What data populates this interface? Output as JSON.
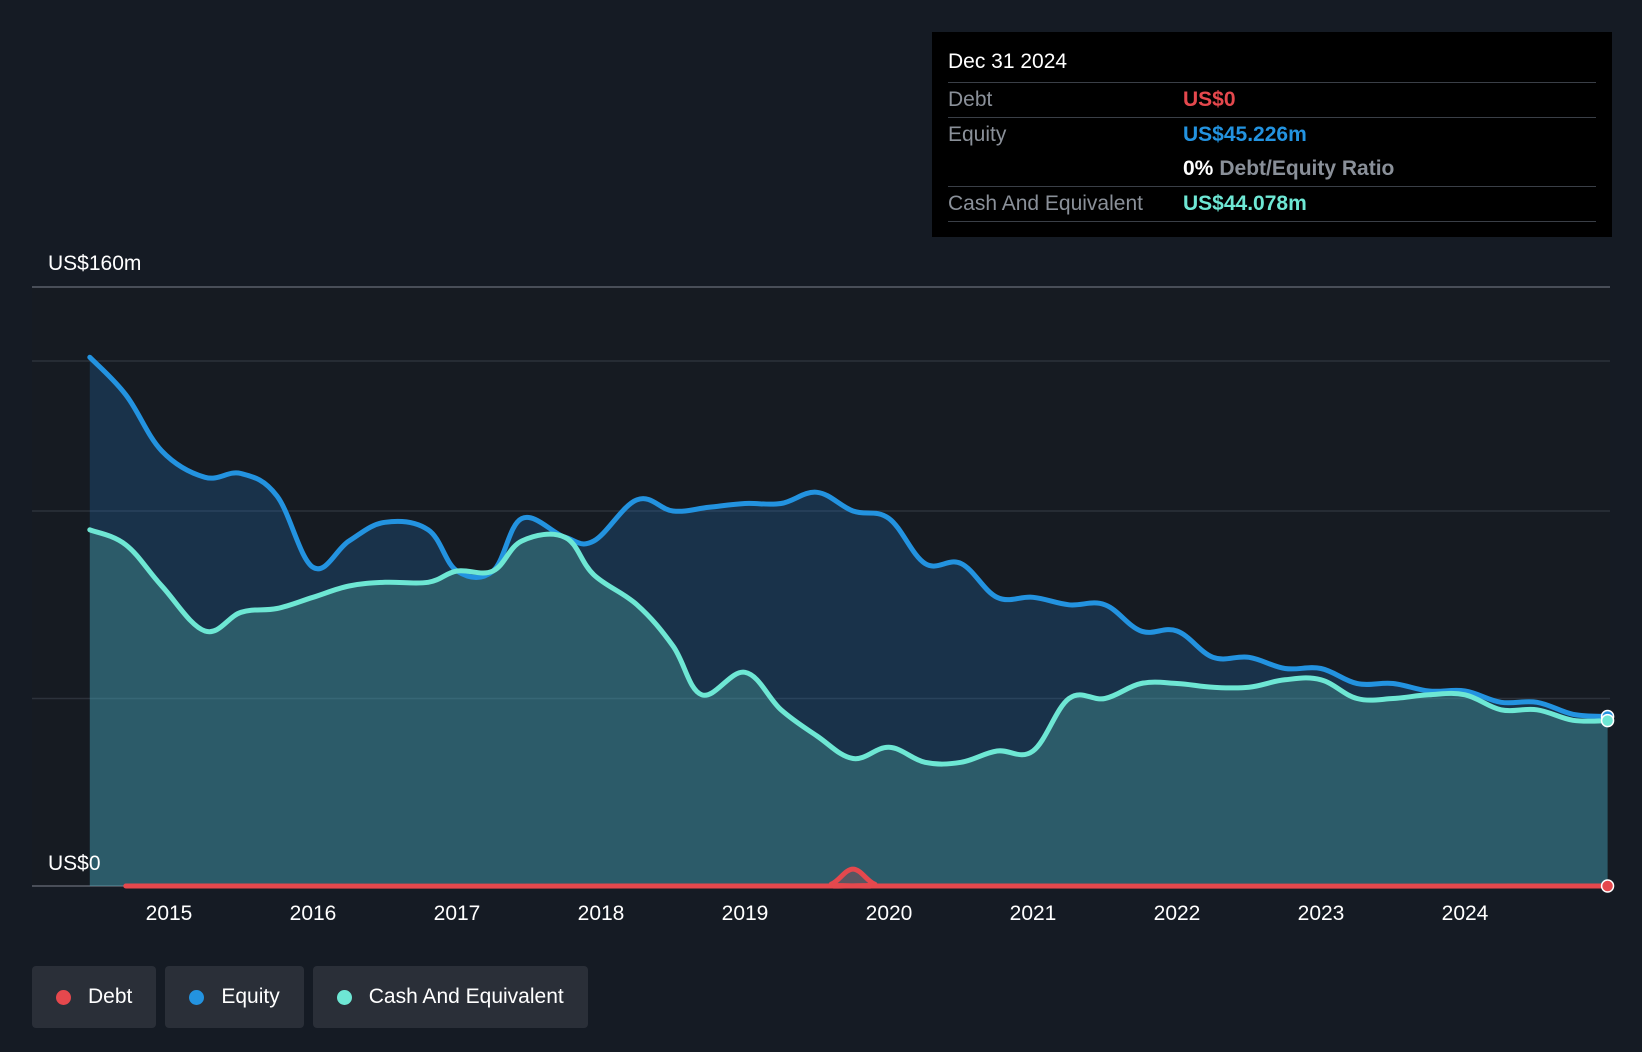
{
  "tooltip": {
    "date": "Dec 31 2024",
    "debt_label": "Debt",
    "debt_value": "US$0",
    "equity_label": "Equity",
    "equity_value": "US$45.226m",
    "ratio_pct": "0%",
    "ratio_label": "Debt/Equity Ratio",
    "cash_label": "Cash And Equivalent",
    "cash_value": "US$44.078m"
  },
  "legend": [
    {
      "label": "Debt",
      "color": "#e5484d"
    },
    {
      "label": "Equity",
      "color": "#2393e0"
    },
    {
      "label": "Cash And Equivalent",
      "color": "#6ee7d4"
    }
  ],
  "colors": {
    "debt": "#e5484d",
    "equity": "#2393e0",
    "cash": "#6ee7d4",
    "background": "#151b24",
    "plot_background": "#161b22"
  },
  "chart_data": {
    "type": "area",
    "ylabel_top": "US$160m",
    "ylabel_bottom": "US$0",
    "ylim": [
      0,
      160
    ],
    "grid": true,
    "xticks": [
      "2015",
      "2016",
      "2017",
      "2018",
      "2019",
      "2020",
      "2021",
      "2022",
      "2023",
      "2024"
    ],
    "series": [
      {
        "name": "Equity",
        "points": [
          [
            2014.45,
            141
          ],
          [
            2014.7,
            131
          ],
          [
            2014.95,
            116
          ],
          [
            2015.25,
            109
          ],
          [
            2015.5,
            110
          ],
          [
            2015.75,
            104
          ],
          [
            2016.0,
            85
          ],
          [
            2016.25,
            92
          ],
          [
            2016.5,
            97
          ],
          [
            2016.8,
            95
          ],
          [
            2017.0,
            84
          ],
          [
            2017.25,
            84
          ],
          [
            2017.45,
            98
          ],
          [
            2017.75,
            93
          ],
          [
            2017.95,
            92
          ],
          [
            2018.25,
            103
          ],
          [
            2018.5,
            100
          ],
          [
            2018.75,
            101
          ],
          [
            2019.0,
            102
          ],
          [
            2019.25,
            102
          ],
          [
            2019.5,
            105
          ],
          [
            2019.75,
            100
          ],
          [
            2020.0,
            98
          ],
          [
            2020.25,
            86
          ],
          [
            2020.5,
            86
          ],
          [
            2020.75,
            77
          ],
          [
            2021.0,
            77
          ],
          [
            2021.25,
            75
          ],
          [
            2021.5,
            75
          ],
          [
            2021.75,
            68
          ],
          [
            2022.0,
            68
          ],
          [
            2022.25,
            61
          ],
          [
            2022.5,
            61
          ],
          [
            2022.75,
            58
          ],
          [
            2023.0,
            58
          ],
          [
            2023.25,
            54
          ],
          [
            2023.5,
            54
          ],
          [
            2023.75,
            52
          ],
          [
            2024.0,
            52
          ],
          [
            2024.25,
            49
          ],
          [
            2024.5,
            49
          ],
          [
            2024.75,
            45.8
          ],
          [
            2024.99,
            45.2
          ]
        ]
      },
      {
        "name": "Cash And Equivalent",
        "points": [
          [
            2014.45,
            95
          ],
          [
            2014.7,
            91
          ],
          [
            2014.95,
            80
          ],
          [
            2015.25,
            68
          ],
          [
            2015.5,
            73
          ],
          [
            2015.75,
            74
          ],
          [
            2016.0,
            77
          ],
          [
            2016.25,
            80
          ],
          [
            2016.5,
            81
          ],
          [
            2016.8,
            81
          ],
          [
            2017.0,
            84
          ],
          [
            2017.25,
            84
          ],
          [
            2017.45,
            92
          ],
          [
            2017.75,
            93
          ],
          [
            2017.95,
            83
          ],
          [
            2018.25,
            75
          ],
          [
            2018.5,
            64
          ],
          [
            2018.7,
            51
          ],
          [
            2019.0,
            57
          ],
          [
            2019.25,
            47
          ],
          [
            2019.5,
            40
          ],
          [
            2019.75,
            34
          ],
          [
            2020.0,
            37
          ],
          [
            2020.25,
            33
          ],
          [
            2020.5,
            33
          ],
          [
            2020.75,
            36
          ],
          [
            2021.0,
            36
          ],
          [
            2021.25,
            50
          ],
          [
            2021.5,
            50
          ],
          [
            2021.75,
            54
          ],
          [
            2022.0,
            54
          ],
          [
            2022.25,
            53
          ],
          [
            2022.5,
            53
          ],
          [
            2022.75,
            55
          ],
          [
            2023.0,
            55
          ],
          [
            2023.25,
            50
          ],
          [
            2023.5,
            50
          ],
          [
            2023.75,
            51
          ],
          [
            2024.0,
            51
          ],
          [
            2024.25,
            47
          ],
          [
            2024.5,
            47
          ],
          [
            2024.75,
            44.2
          ],
          [
            2024.99,
            44.1
          ]
        ]
      },
      {
        "name": "Debt",
        "points": [
          [
            2014.7,
            0
          ],
          [
            2019.45,
            0
          ],
          [
            2019.6,
            0.5
          ],
          [
            2019.75,
            4.5
          ],
          [
            2019.9,
            0.5
          ],
          [
            2020.05,
            0
          ],
          [
            2024.99,
            0
          ]
        ]
      }
    ]
  }
}
